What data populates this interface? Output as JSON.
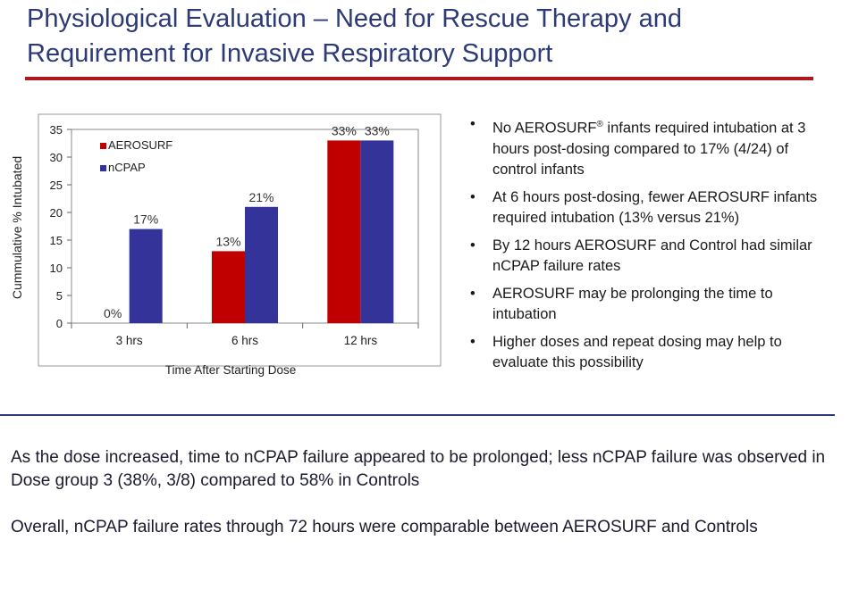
{
  "slide": {
    "title": "Physiological Evaluation – Need for Rescue  Therapy and Requirement for Invasive Respiratory Support"
  },
  "bullets": [
    {
      "pre": "No AEROSURF",
      "sup": "®",
      "post": " infants required intubation at 3 hours post-dosing compared to 17% (4/24) of control infants"
    },
    {
      "pre": "At 6 hours post-dosing, fewer AEROSURF infants required intubation (13% versus 21%)",
      "sup": "",
      "post": ""
    },
    {
      "pre": "By 12 hours AEROSURF and Control had similar  nCPAP failure rates",
      "sup": "",
      "post": ""
    },
    {
      "pre": "AEROSURF may be prolonging the time to intubation",
      "sup": "",
      "post": ""
    },
    {
      "pre": "Higher doses and repeat dosing may help to evaluate this possibility",
      "sup": "",
      "post": ""
    }
  ],
  "summary": [
    "As the dose increased, time to nCPAP failure appeared to be prolonged; less nCPAP failure was observed in Dose group 3 (38%, 3/8) compared to 58% in Controls",
    "Overall, nCPAP failure rates through 72 hours were comparable between AEROSURF and Controls"
  ],
  "chart_data": {
    "type": "bar",
    "categories": [
      "3 hrs",
      "6 hrs",
      "12 hrs"
    ],
    "series": [
      {
        "name": "AEROSURF",
        "values": [
          0,
          13,
          33
        ],
        "labels": [
          "0%",
          "13%",
          "33%"
        ],
        "color": "#c00000"
      },
      {
        "name": "nCPAP",
        "values": [
          17,
          21,
          33
        ],
        "labels": [
          "17%",
          "21%",
          "33%"
        ],
        "color": "#333399"
      }
    ],
    "xlabel": "Time After Starting Dose",
    "ylabel": "Cummulative % Intubated",
    "ylim": [
      0,
      35
    ],
    "yticks": [
      0,
      5,
      10,
      15,
      20,
      25,
      30,
      35
    ],
    "legend": "top-left",
    "grid": false
  }
}
